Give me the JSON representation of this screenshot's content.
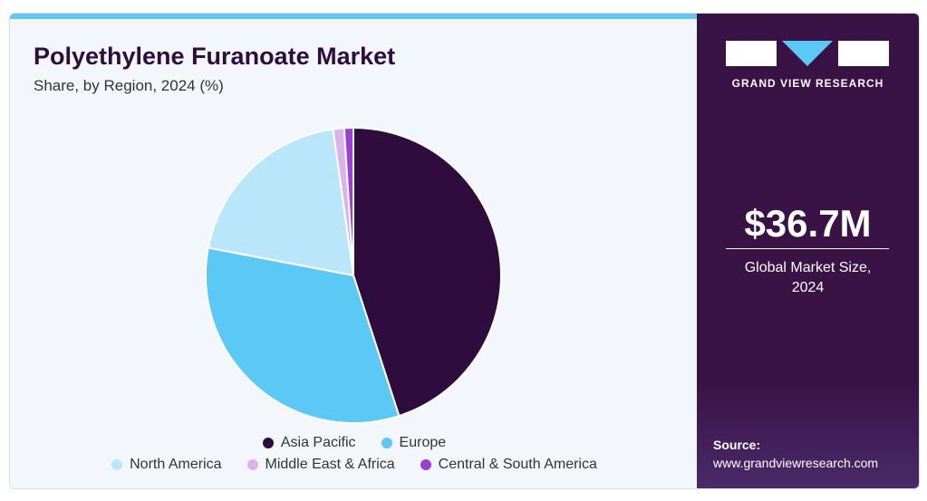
{
  "chart_data": {
    "type": "pie",
    "title": "Polyethylene Furanoate Market",
    "subtitle": "Share, by Region, 2024 (%)",
    "categories": [
      "Asia Pacific",
      "Europe",
      "North America",
      "Middle East & Africa",
      "Central & South America"
    ],
    "values": [
      45,
      33,
      19.8,
      1.2,
      1
    ],
    "colors": [
      "#2e0d3e",
      "#5bc8f5",
      "#b9e6f8",
      "#d9b3ec",
      "#9d3fd6"
    ]
  },
  "panel": {
    "brand": "GRAND VIEW RESEARCH",
    "market_size": "$36.7M",
    "market_size_label": "Global Market Size, 2024",
    "source_label": "Source:",
    "source_url": "www.grandviewresearch.com"
  }
}
